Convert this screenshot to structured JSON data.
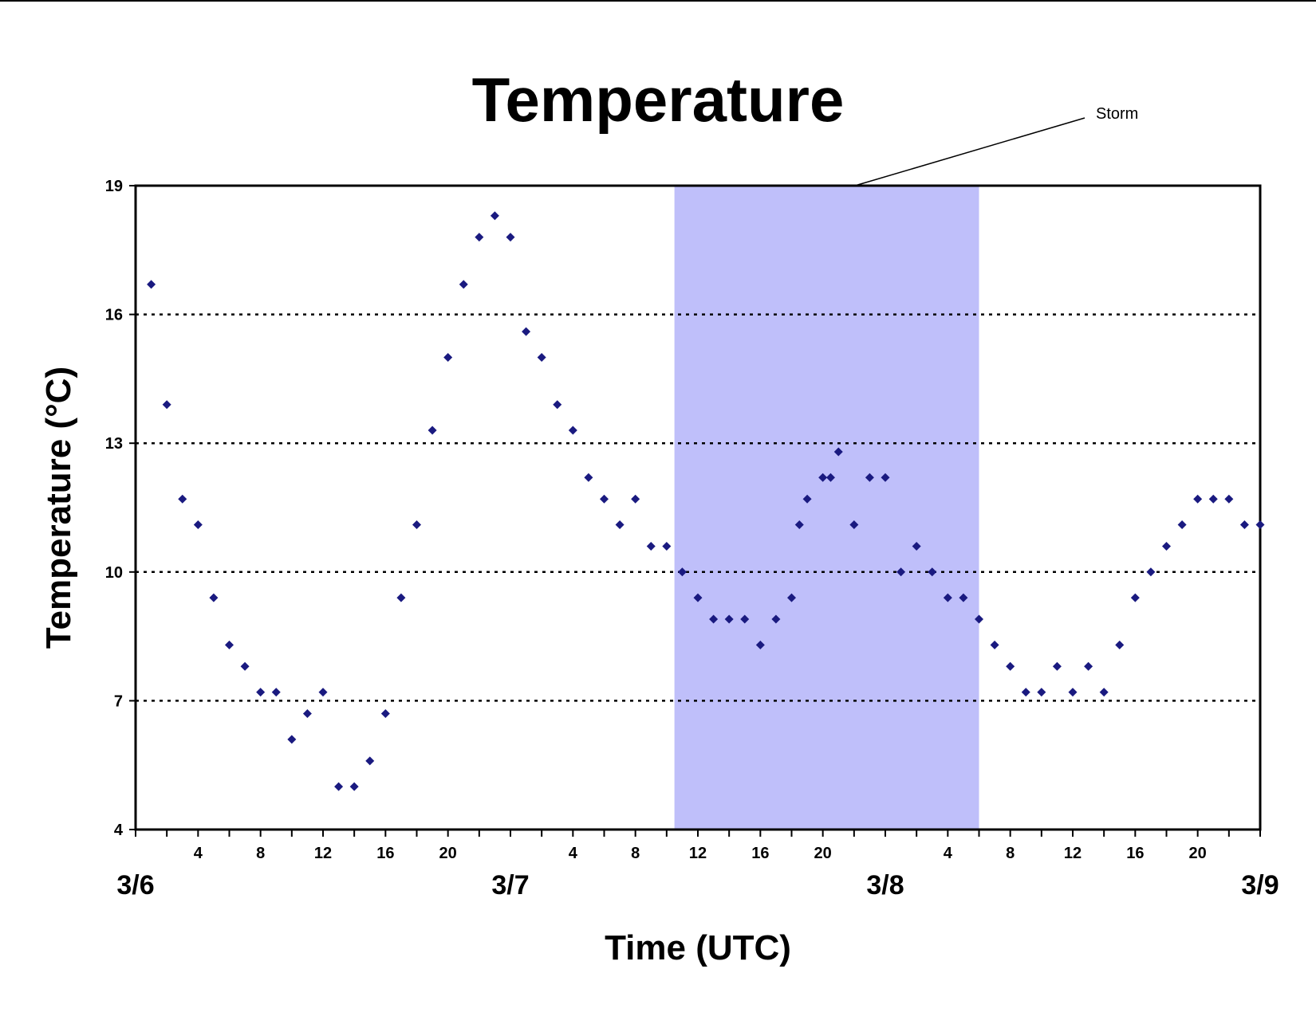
{
  "chart_data": {
    "type": "scatter",
    "title": "Temperature",
    "xlabel": "Time (UTC)",
    "ylabel": "Temperature (°C)",
    "ylim": [
      4,
      19
    ],
    "yticks": [
      4,
      7,
      10,
      13,
      16,
      19
    ],
    "xlim": [
      "3/6 00:00",
      "3/9 00:00"
    ],
    "hour_tick_labels": [
      "4",
      "8",
      "12",
      "16",
      "20"
    ],
    "date_labels": [
      "3/6",
      "3/7",
      "3/8",
      "3/9"
    ],
    "grid": "horizontal dotted",
    "marker_color": "#1a1a80",
    "highlight": {
      "label": "Storm",
      "start": "3/7 10:30",
      "end": "3/8 06:00",
      "color": "#bfbffa"
    },
    "series": [
      {
        "x": [
          "3/6 01:00",
          "3/6 02:00",
          "3/6 03:00",
          "3/6 04:00",
          "3/6 05:00",
          "3/6 06:00",
          "3/6 07:00",
          "3/6 08:00",
          "3/6 09:00",
          "3/6 10:00",
          "3/6 11:00",
          "3/6 12:00",
          "3/6 13:00",
          "3/6 14:00",
          "3/6 15:00",
          "3/6 16:00",
          "3/6 17:00",
          "3/6 18:00",
          "3/6 19:00",
          "3/6 20:00",
          "3/6 21:00",
          "3/6 22:00",
          "3/6 23:00",
          "3/7 00:00",
          "3/7 01:00",
          "3/7 02:00",
          "3/7 03:00",
          "3/7 04:00",
          "3/7 05:00",
          "3/7 06:00",
          "3/7 07:00",
          "3/7 08:00",
          "3/7 09:00",
          "3/7 10:00",
          "3/7 11:00",
          "3/7 12:00",
          "3/7 13:00",
          "3/7 14:00",
          "3/7 15:00",
          "3/7 16:00",
          "3/7 17:00",
          "3/7 18:00",
          "3/7 18:30",
          "3/7 19:00",
          "3/7 20:00",
          "3/7 20:30",
          "3/7 21:00",
          "3/7 22:00",
          "3/7 23:00",
          "3/8 00:00",
          "3/8 01:00",
          "3/8 02:00",
          "3/8 03:00",
          "3/8 04:00",
          "3/8 05:00",
          "3/8 06:00",
          "3/8 07:00",
          "3/8 08:00",
          "3/8 09:00",
          "3/8 10:00",
          "3/8 11:00",
          "3/8 12:00",
          "3/8 13:00",
          "3/8 14:00",
          "3/8 15:00",
          "3/8 16:00",
          "3/8 17:00",
          "3/8 18:00",
          "3/8 19:00",
          "3/8 20:00",
          "3/8 21:00",
          "3/8 22:00",
          "3/8 23:00",
          "3/9 00:00"
        ],
        "y": [
          16.7,
          13.9,
          11.7,
          11.1,
          9.4,
          8.3,
          7.8,
          7.2,
          7.2,
          6.1,
          6.7,
          7.2,
          5.0,
          5.0,
          5.6,
          6.7,
          9.4,
          11.1,
          13.3,
          15.0,
          16.7,
          17.8,
          18.3,
          17.8,
          15.6,
          15.0,
          13.9,
          13.3,
          12.2,
          11.7,
          11.1,
          11.7,
          10.6,
          10.6,
          10.0,
          9.4,
          8.9,
          8.9,
          8.9,
          8.3,
          8.9,
          9.4,
          11.1,
          11.7,
          12.2,
          12.2,
          12.8,
          11.1,
          12.2,
          12.2,
          10.0,
          10.6,
          10.0,
          9.4,
          9.4,
          8.9,
          8.3,
          7.8,
          7.2,
          7.2,
          7.8,
          7.2,
          7.8,
          7.2,
          8.3,
          9.4,
          10.0,
          10.6,
          11.1,
          11.7,
          11.7,
          11.7,
          11.1,
          11.1
        ]
      }
    ]
  }
}
